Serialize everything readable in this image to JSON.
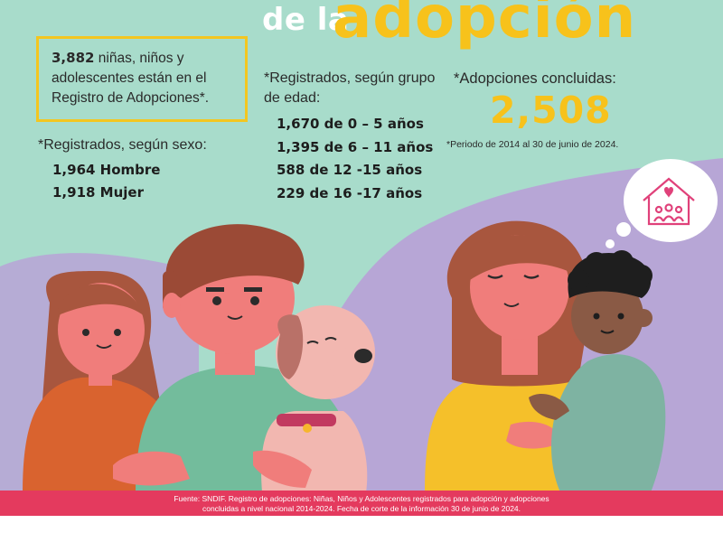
{
  "title": {
    "small": "de la",
    "big": "adopción"
  },
  "box": {
    "number": "3,882",
    "text": " niñas, niños y adolescentes están en el Registro de Adopciones*."
  },
  "sexo": {
    "heading": "*Registrados, según sexo:",
    "items": [
      "1,964 Hombre",
      "1,918 Mujer"
    ]
  },
  "edad": {
    "heading": "*Registrados, según grupo de edad:",
    "items": [
      "1,670 de 0 – 5 años",
      "1,395 de 6 – 11 años",
      "588 de 12 -15 años",
      "229 de 16 -17 años"
    ]
  },
  "adopciones": {
    "heading": "*Adopciones concluidas:",
    "number": "2,508",
    "note": "*Periodo de 2014 al 30 de junio de 2024."
  },
  "footer": {
    "line1": "Fuente: SNDIF. Registro de adopciones: Niñas, Niños y Adolescentes registrados para adopción y adopciones",
    "line2": "concluidas a nivel nacional 2014-2024. Fecha de corte de la información 30 de junio de 2024."
  },
  "colors": {
    "mint": "#a8dccb",
    "lavender": "#b7a6d6",
    "yellow": "#f7c21b",
    "pink_band": "#e43a5e",
    "skin": "#f07d7b"
  }
}
